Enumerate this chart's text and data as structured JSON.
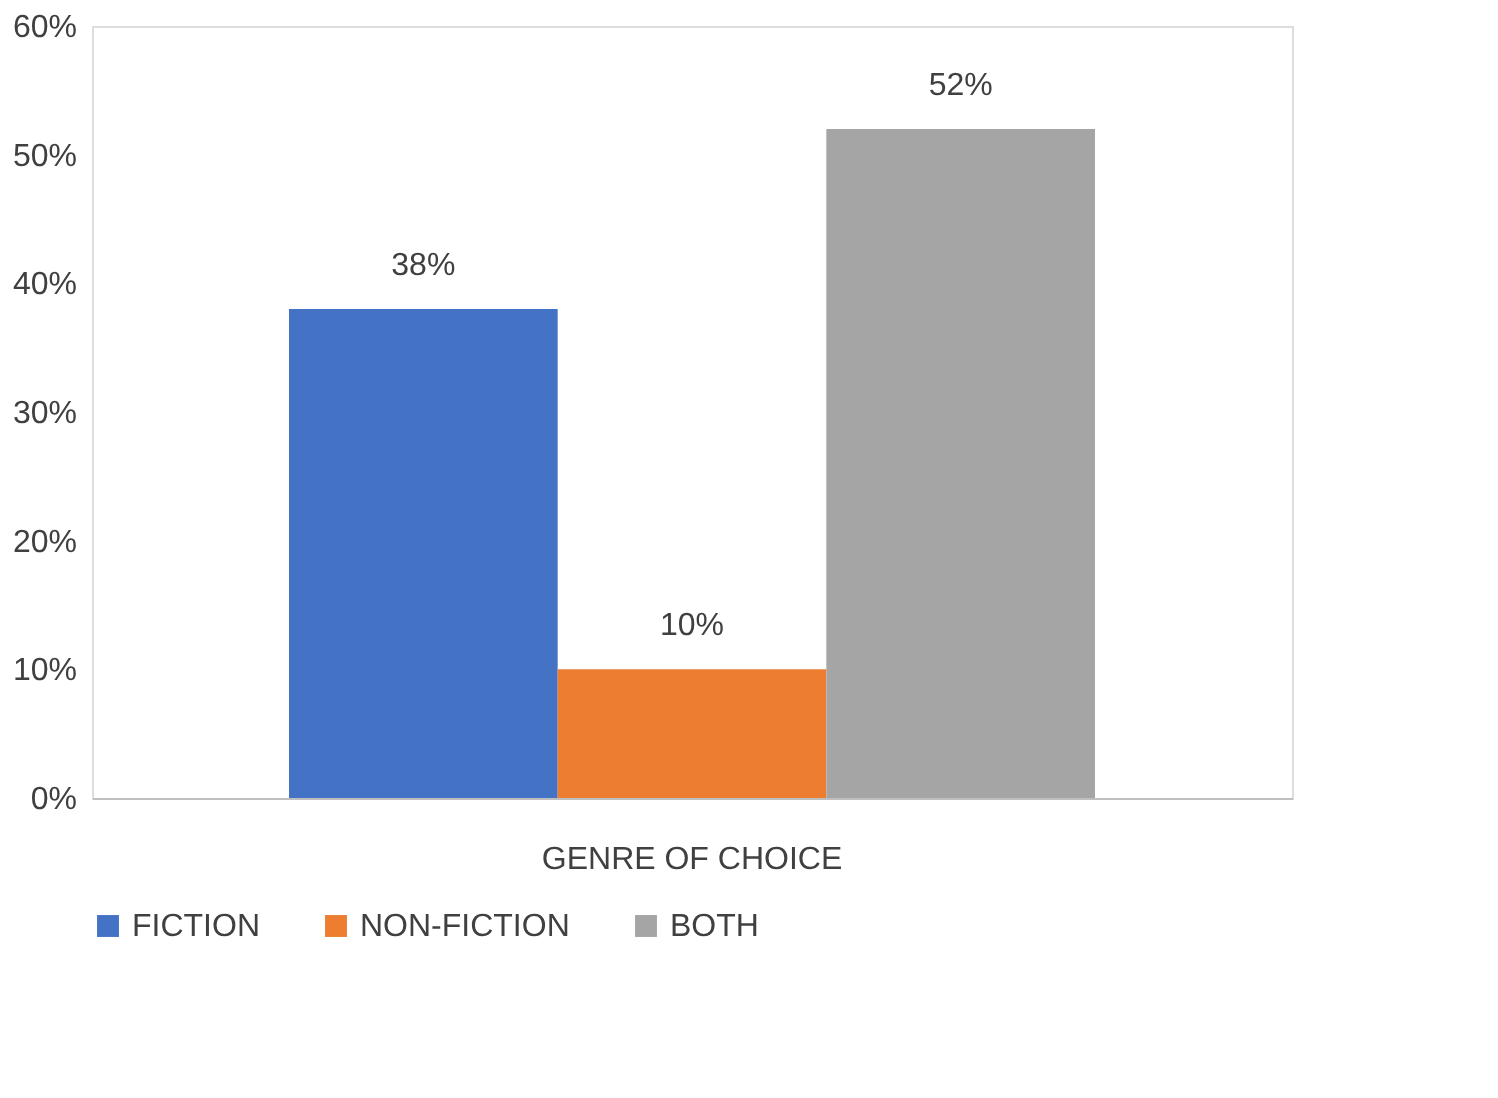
{
  "chart_data": {
    "type": "bar",
    "categories": [
      "GENRE OF CHOICE"
    ],
    "series": [
      {
        "name": "FICTION",
        "color": "#4472c4",
        "values": [
          38
        ],
        "value_labels": [
          "38%"
        ]
      },
      {
        "name": "NON-FICTION",
        "color": "#ed7d31",
        "values": [
          10
        ],
        "value_labels": [
          "10%"
        ]
      },
      {
        "name": "BOTH",
        "color": "#a5a5a5",
        "values": [
          52
        ],
        "value_labels": [
          "52%"
        ]
      }
    ],
    "ylim": [
      0,
      60
    ],
    "yticks": [
      {
        "value": 0,
        "label": "0%"
      },
      {
        "value": 10,
        "label": "10%"
      },
      {
        "value": 20,
        "label": "20%"
      },
      {
        "value": 30,
        "label": "30%"
      },
      {
        "value": 40,
        "label": "40%"
      },
      {
        "value": 50,
        "label": "50%"
      },
      {
        "value": 60,
        "label": "60%"
      }
    ],
    "grid": false,
    "legend": "bottom"
  }
}
